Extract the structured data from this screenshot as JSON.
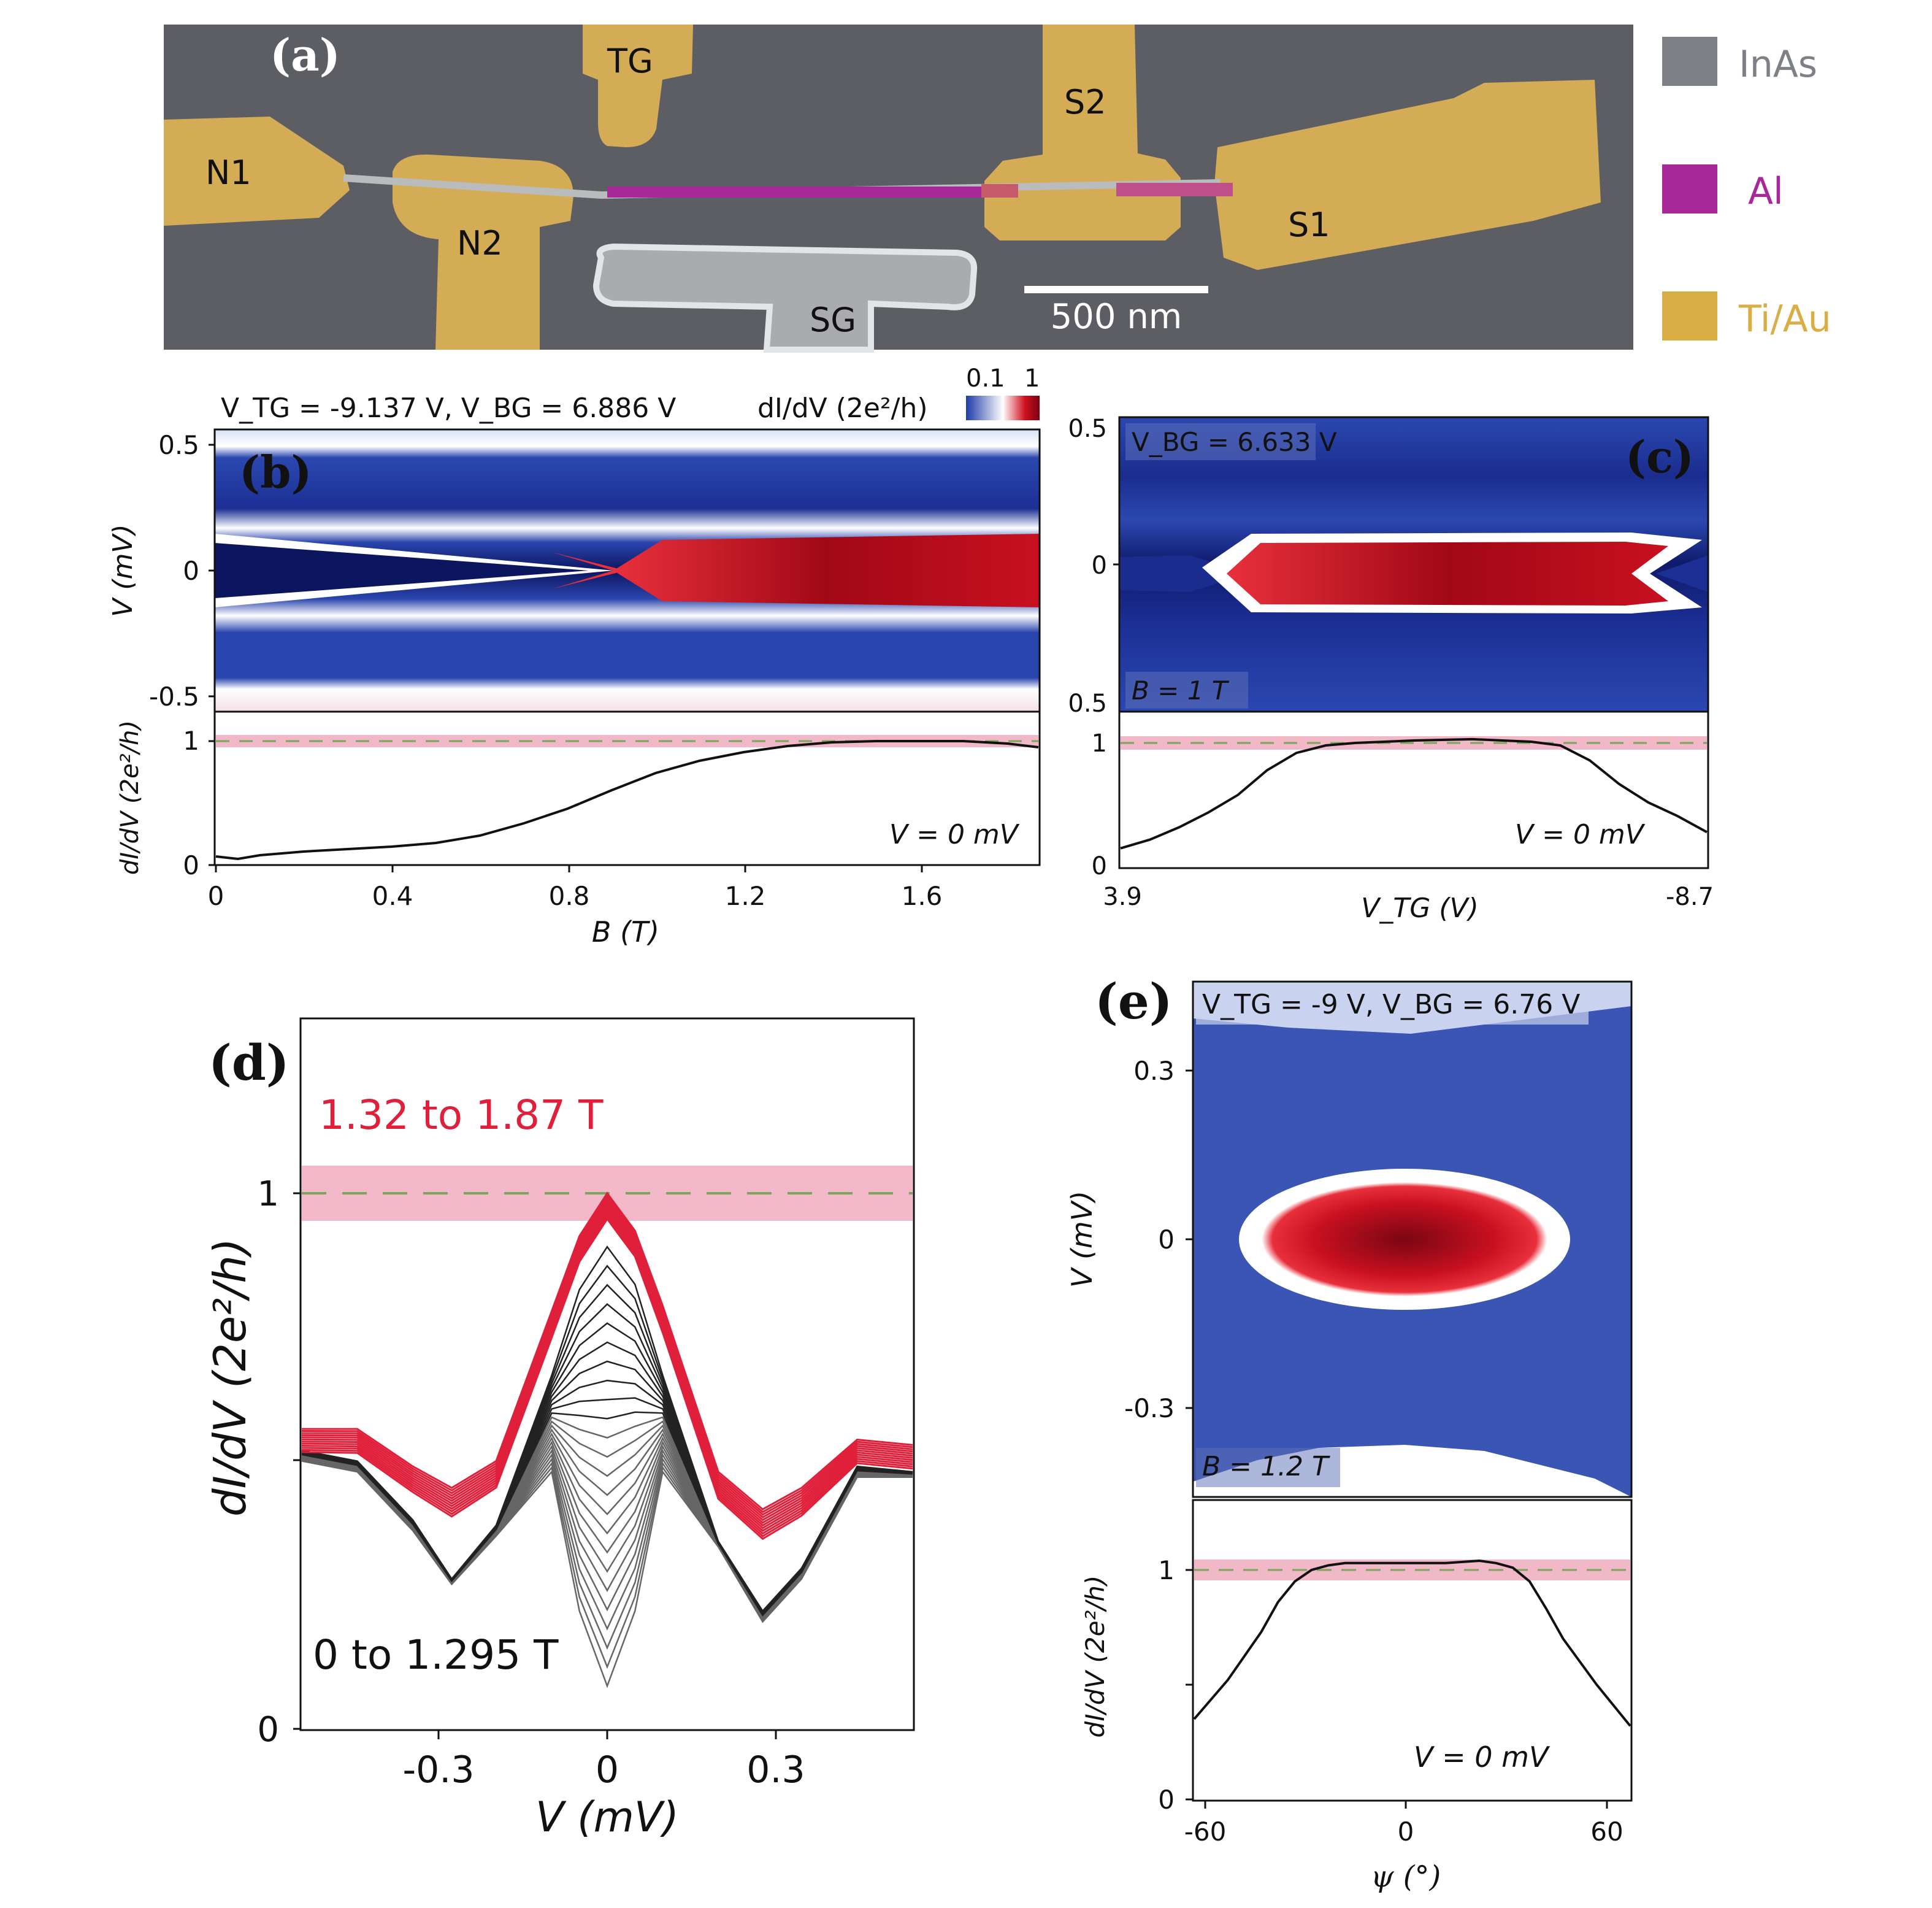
{
  "panel_labels": {
    "a": "(a)",
    "b": "(b)",
    "c": "(c)",
    "d": "(d)",
    "e": "(e)"
  },
  "panel_a": {
    "electrodes": {
      "n1": "N1",
      "n2": "N2",
      "tg": "TG",
      "s2": "S2",
      "s1": "S1",
      "sg": "SG"
    },
    "scale_bar": "500 nm",
    "legend": [
      {
        "label": "InAs",
        "color": "#7d8085"
      },
      {
        "label": "Al",
        "color": "#a8289a"
      },
      {
        "label": "Ti/Au",
        "color": "#d9ae45"
      }
    ],
    "colors": {
      "background": "#5c5e63",
      "gold": "#d4ac55",
      "wire": "#b9bbbd",
      "al": "#a8289a"
    }
  },
  "colorbar": {
    "title": "dI/dV (2e²/h)",
    "min_label": "0.1",
    "max_label": "1",
    "colors": [
      "#1f3ba8",
      "#ffffff",
      "#d0101e",
      "#7a0010"
    ]
  },
  "chart_data": [
    {
      "panel": "b-map",
      "type": "heatmap",
      "annotation": "V_TG = -9.137 V, V_BG = 6.886 V",
      "ylabel": "V (mV)",
      "ylim": [
        -0.55,
        0.55
      ],
      "yticks": [
        "0.5",
        "0",
        "-0.5"
      ],
      "xlim": [
        0,
        1.87
      ]
    },
    {
      "panel": "b-cut",
      "type": "line",
      "xlabel": "B (T)",
      "ylabel": "dI/dV (2e²/h)",
      "xlim": [
        0,
        1.87
      ],
      "ylim": [
        0,
        1.0
      ],
      "xticks": [
        "0",
        "0.4",
        "0.8",
        "1.2",
        "1.6"
      ],
      "yticks": [
        "1",
        "0"
      ],
      "annotation": "V = 0 mV",
      "reference_line": 1,
      "band": [
        0.96,
        1.04
      ],
      "x": [
        0,
        0.05,
        0.1,
        0.2,
        0.3,
        0.4,
        0.5,
        0.6,
        0.7,
        0.8,
        0.9,
        1.0,
        1.1,
        1.2,
        1.3,
        1.4,
        1.5,
        1.6,
        1.7,
        1.8,
        1.87
      ],
      "y": [
        0.06,
        0.04,
        0.07,
        0.1,
        0.12,
        0.14,
        0.17,
        0.23,
        0.33,
        0.45,
        0.6,
        0.74,
        0.84,
        0.91,
        0.96,
        0.99,
        1.0,
        1.0,
        1.0,
        0.98,
        0.95
      ]
    },
    {
      "panel": "c-map",
      "type": "heatmap",
      "annotation_top": "V_BG = 6.633 V",
      "annotation_bottom": "B = 1 T",
      "yticks": [
        "0.5",
        "0",
        "0.5"
      ],
      "ylim": [
        -0.55,
        0.55
      ]
    },
    {
      "panel": "c-cut",
      "type": "line",
      "xlabel": "V_TG (V)",
      "xticks": [
        "3.9",
        "-8.7"
      ],
      "yticks": [
        "1",
        "0"
      ],
      "ylim": [
        0,
        1.0
      ],
      "annotation": "V = 0 mV",
      "reference_line": 1,
      "band": [
        0.96,
        1.04
      ],
      "x": [
        0,
        0.05,
        0.1,
        0.15,
        0.2,
        0.25,
        0.3,
        0.35,
        0.4,
        0.5,
        0.6,
        0.7,
        0.75,
        0.8,
        0.85,
        0.9,
        0.95,
        1.0
      ],
      "y": [
        0.15,
        0.22,
        0.32,
        0.44,
        0.58,
        0.78,
        0.92,
        0.98,
        1.0,
        1.02,
        1.03,
        1.01,
        0.98,
        0.86,
        0.67,
        0.52,
        0.41,
        0.28
      ]
    },
    {
      "panel": "d",
      "type": "line",
      "xlabel": "V (mV)",
      "ylabel": "dI/dV (2e²/h)",
      "xlim": [
        -0.55,
        0.55
      ],
      "ylim": [
        0,
        1.0
      ],
      "xticks": [
        "-0.3",
        "0",
        "0.3"
      ],
      "yticks": [
        "1",
        "0"
      ],
      "reference_line": 1,
      "band": [
        0.95,
        1.04
      ],
      "red_label": "1.32 to 1.87 T",
      "black_label": "0 to 1.295 T",
      "x": [
        -0.55,
        -0.45,
        -0.35,
        -0.28,
        -0.2,
        -0.1,
        -0.05,
        0,
        0.05,
        0.1,
        0.2,
        0.28,
        0.35,
        0.45,
        0.55
      ],
      "series": [
        {
          "color": "#e0203a",
          "y": [
            0.56,
            0.56,
            0.49,
            0.45,
            0.5,
            0.78,
            0.92,
            1.0,
            0.93,
            0.79,
            0.48,
            0.41,
            0.45,
            0.54,
            0.53
          ]
        },
        {
          "color": "#111111",
          "y": [
            0.52,
            0.5,
            0.39,
            0.28,
            0.38,
            0.66,
            0.82,
            0.9,
            0.83,
            0.66,
            0.35,
            0.22,
            0.3,
            0.49,
            0.48
          ]
        },
        {
          "color": "#555555",
          "y": [
            0.5,
            0.48,
            0.37,
            0.27,
            0.36,
            0.48,
            0.22,
            0.08,
            0.22,
            0.48,
            0.34,
            0.2,
            0.28,
            0.47,
            0.47
          ]
        }
      ]
    },
    {
      "panel": "e-map",
      "type": "heatmap",
      "annotation_top": "V_TG = -9 V, V_BG = 6.76 V",
      "annotation_bottom": "B = 1.2 T",
      "ylabel": "V (mV)",
      "yticks": [
        "0.3",
        "0",
        "-0.3"
      ],
      "ylim": [
        -0.45,
        0.45
      ]
    },
    {
      "panel": "e-cut",
      "type": "line",
      "xlabel": "ψ (°)",
      "ylabel": "dI/dV (2e²/h)",
      "xlim": [
        -60,
        60
      ],
      "xticks": [
        "-60",
        "0",
        "60"
      ],
      "yticks": [
        "1",
        "0"
      ],
      "ylim": [
        0,
        1.0
      ],
      "annotation": "V = 0 mV",
      "reference_line": 1,
      "band": [
        0.96,
        1.04
      ],
      "x": [
        -65,
        -55,
        -45,
        -40,
        -35,
        -30,
        -25,
        -20,
        -10,
        0,
        10,
        20,
        25,
        30,
        35,
        40,
        45,
        55,
        65
      ],
      "y": [
        0.35,
        0.52,
        0.73,
        0.86,
        0.95,
        1.0,
        1.02,
        1.03,
        1.03,
        1.03,
        1.03,
        1.04,
        1.03,
        1.01,
        0.95,
        0.83,
        0.7,
        0.5,
        0.32
      ]
    }
  ]
}
